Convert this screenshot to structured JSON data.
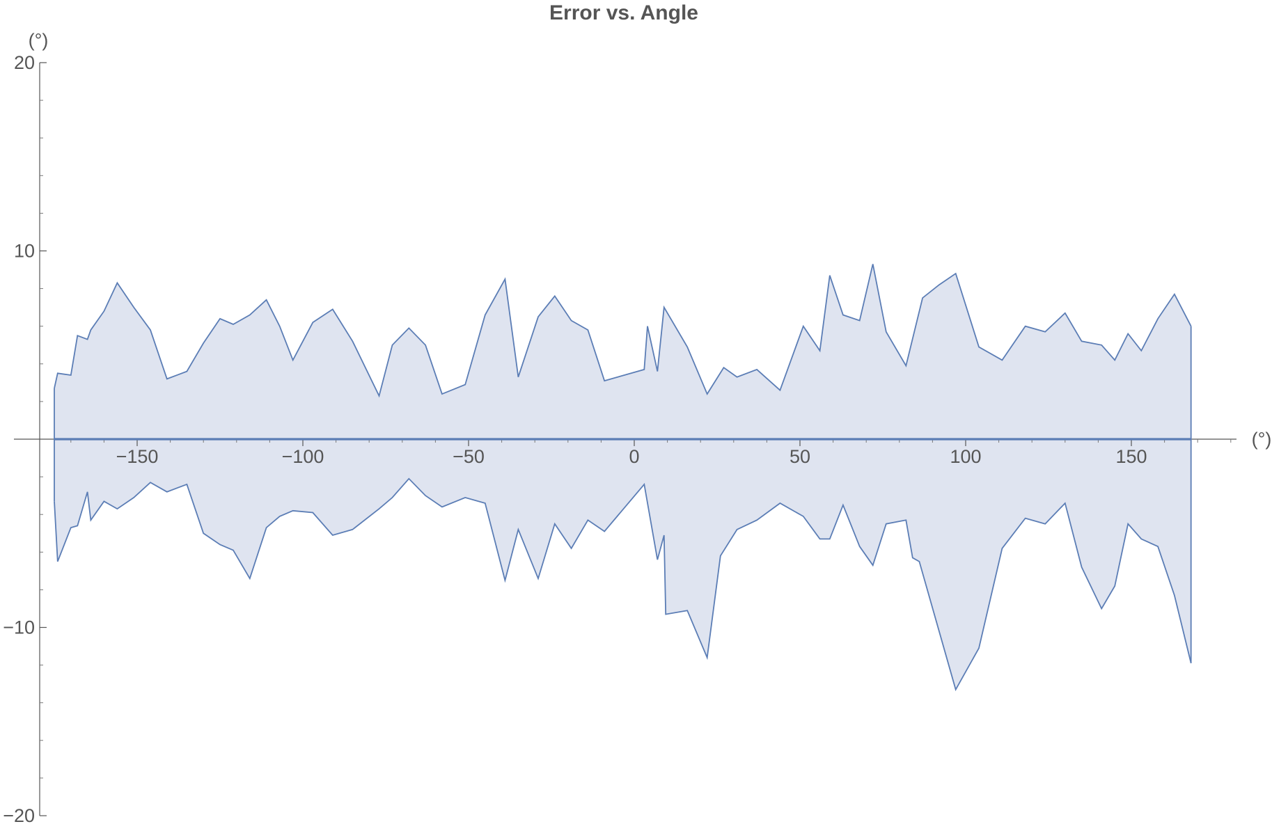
{
  "chart_data": {
    "type": "area",
    "title": "Error vs. Angle",
    "xlabel": "(°)",
    "ylabel": "(°)",
    "xlim": [
      -177,
      180
    ],
    "ylim": [
      -20,
      20
    ],
    "x_ticks": [
      -150,
      -100,
      -50,
      0,
      50,
      100,
      150
    ],
    "y_ticks": [
      -20,
      -10,
      10,
      20
    ],
    "grid": false,
    "colors": {
      "line": "#5b7db5",
      "fill": "#dfe4f0",
      "axis": "#555555"
    },
    "series": [
      {
        "values": [
          [
            -175,
            2.7
          ],
          [
            -174,
            3.5
          ],
          [
            -170,
            3.4
          ],
          [
            -168,
            5.5
          ],
          [
            -165,
            5.3
          ],
          [
            -164,
            5.8
          ],
          [
            -160,
            6.8
          ],
          [
            -156,
            8.3
          ],
          [
            -151,
            7.0
          ],
          [
            -146,
            5.8
          ],
          [
            -141,
            3.2
          ],
          [
            -135,
            3.6
          ],
          [
            -130,
            5.1
          ],
          [
            -125,
            6.4
          ],
          [
            -121,
            6.1
          ],
          [
            -116,
            6.6
          ],
          [
            -111,
            7.4
          ],
          [
            -107,
            6.0
          ],
          [
            -103,
            4.2
          ],
          [
            -97,
            6.2
          ],
          [
            -91,
            6.9
          ],
          [
            -85,
            5.2
          ],
          [
            -77,
            2.3
          ],
          [
            -73,
            5.0
          ],
          [
            -68,
            5.9
          ],
          [
            -63,
            5.0
          ],
          [
            -58,
            2.4
          ],
          [
            -51,
            2.9
          ],
          [
            -45,
            6.6
          ],
          [
            -39,
            8.5
          ],
          [
            -35,
            3.3
          ],
          [
            -29,
            6.5
          ],
          [
            -24,
            7.6
          ],
          [
            -19,
            6.3
          ],
          [
            -14,
            5.8
          ],
          [
            -9,
            3.1
          ],
          [
            3,
            3.7
          ],
          [
            4,
            6.0
          ],
          [
            7,
            3.6
          ],
          [
            9,
            7.0
          ],
          [
            16,
            4.9
          ],
          [
            22,
            2.4
          ],
          [
            27,
            3.8
          ],
          [
            31,
            3.3
          ],
          [
            37,
            3.7
          ],
          [
            44,
            2.6
          ],
          [
            51,
            6.0
          ],
          [
            56,
            4.7
          ],
          [
            59,
            8.7
          ],
          [
            63,
            6.6
          ],
          [
            68,
            6.3
          ],
          [
            72,
            9.3
          ],
          [
            76,
            5.7
          ],
          [
            82,
            3.9
          ],
          [
            87,
            7.5
          ],
          [
            92,
            8.2
          ],
          [
            97,
            8.8
          ],
          [
            104,
            4.9
          ],
          [
            111,
            4.2
          ],
          [
            118,
            6.0
          ],
          [
            124,
            5.7
          ],
          [
            130,
            6.7
          ],
          [
            135,
            5.2
          ],
          [
            141,
            5.0
          ],
          [
            145,
            4.2
          ],
          [
            149,
            5.6
          ],
          [
            153,
            4.7
          ],
          [
            158,
            6.4
          ],
          [
            163,
            7.7
          ],
          [
            168,
            6.0
          ]
        ],
        "note_values_are_upper_envelope": ""
      },
      {
        "values": [
          [
            -175,
            -3.3
          ],
          [
            -174,
            -6.5
          ],
          [
            -170,
            -4.7
          ],
          [
            -168,
            -4.6
          ],
          [
            -165,
            -2.8
          ],
          [
            -164,
            -4.3
          ],
          [
            -160,
            -3.3
          ],
          [
            -156,
            -3.7
          ],
          [
            -151,
            -3.1
          ],
          [
            -146,
            -2.3
          ],
          [
            -141,
            -2.8
          ],
          [
            -135,
            -2.4
          ],
          [
            -130,
            -5.0
          ],
          [
            -125,
            -5.6
          ],
          [
            -121,
            -5.9
          ],
          [
            -116,
            -7.4
          ],
          [
            -111,
            -4.7
          ],
          [
            -107,
            -4.1
          ],
          [
            -103,
            -3.8
          ],
          [
            -97,
            -3.9
          ],
          [
            -91,
            -5.1
          ],
          [
            -85,
            -4.8
          ],
          [
            -77,
            -3.7
          ],
          [
            -73,
            -3.1
          ],
          [
            -68,
            -2.1
          ],
          [
            -63,
            -3.0
          ],
          [
            -58,
            -3.6
          ],
          [
            -51,
            -3.1
          ],
          [
            -45,
            -3.4
          ],
          [
            -39,
            -7.5
          ],
          [
            -35,
            -4.8
          ],
          [
            -29,
            -7.4
          ],
          [
            -24,
            -4.5
          ],
          [
            -19,
            -5.8
          ],
          [
            -14,
            -4.3
          ],
          [
            -9,
            -4.9
          ],
          [
            3,
            -2.4
          ],
          [
            7,
            -6.4
          ],
          [
            9,
            -5.1
          ],
          [
            9.5,
            -9.3
          ],
          [
            16,
            -9.1
          ],
          [
            22,
            -11.6
          ],
          [
            26,
            -6.2
          ],
          [
            31,
            -4.8
          ],
          [
            37,
            -4.3
          ],
          [
            44,
            -3.4
          ],
          [
            51,
            -4.1
          ],
          [
            56,
            -5.3
          ],
          [
            59,
            -5.3
          ],
          [
            63,
            -3.5
          ],
          [
            68,
            -5.7
          ],
          [
            72,
            -6.7
          ],
          [
            76,
            -4.5
          ],
          [
            82,
            -4.3
          ],
          [
            84,
            -6.3
          ],
          [
            86,
            -6.5
          ],
          [
            97,
            -13.3
          ],
          [
            104,
            -11.1
          ],
          [
            111,
            -5.8
          ],
          [
            118,
            -4.2
          ],
          [
            124,
            -4.5
          ],
          [
            130,
            -3.4
          ],
          [
            135,
            -6.8
          ],
          [
            141,
            -9.0
          ],
          [
            145,
            -7.8
          ],
          [
            149,
            -4.5
          ],
          [
            153,
            -5.3
          ],
          [
            158,
            -5.7
          ],
          [
            163,
            -8.3
          ],
          [
            168,
            -11.9
          ]
        ]
      }
    ]
  }
}
